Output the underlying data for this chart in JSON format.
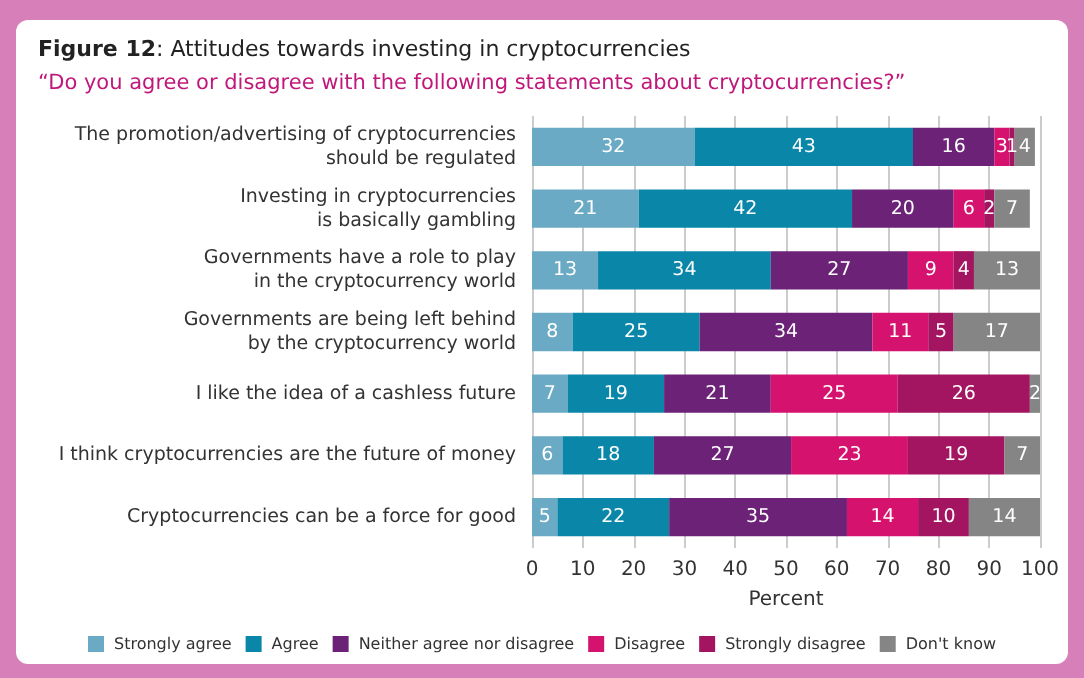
{
  "chart_data": {
    "type": "bar",
    "orientation": "horizontal",
    "stacked": true,
    "title": "Figure 12: Attitudes towards investing in cryptocurrencies",
    "subtitle": "“Do you agree or disagree with the following statements about cryptocurrencies?”",
    "xlabel": "Percent",
    "categories": [
      "The promotion/advertising of cryptocurrencies\nshould be regulated",
      "Investing in cryptocurrencies\nis basically gambling",
      "Governments have a role to play\nin the cryptocurrency world",
      "Governments are being left behind\nby the cryptocurrency world",
      "I like the idea of a cashless future",
      "I think cryptocurrencies are the future of money",
      "Cryptocurrencies can be a force for good"
    ],
    "series": [
      {
        "name": "Strongly agree",
        "color": "#6aaac4",
        "values": [
          32,
          21,
          13,
          8,
          7,
          6,
          5
        ]
      },
      {
        "name": "Agree",
        "color": "#0a87a8",
        "values": [
          43,
          42,
          34,
          25,
          19,
          18,
          22
        ]
      },
      {
        "name": "Neither agree nor disagree",
        "color": "#6b2277",
        "values": [
          16,
          20,
          27,
          34,
          21,
          27,
          35
        ]
      },
      {
        "name": "Disagree",
        "color": "#d5136f",
        "values": [
          3,
          6,
          9,
          11,
          25,
          23,
          14
        ]
      },
      {
        "name": "Strongly disagree",
        "color": "#a31560",
        "values": [
          1,
          2,
          4,
          5,
          26,
          19,
          10
        ]
      },
      {
        "name": "Don't know",
        "color": "#858585",
        "values": [
          4,
          7,
          13,
          17,
          2,
          7,
          14
        ]
      }
    ],
    "xlim": [
      0,
      100
    ],
    "xticks": [
      0,
      10,
      20,
      30,
      40,
      50,
      60,
      70,
      80,
      90,
      100
    ],
    "grid": "x",
    "legend": "bottom",
    "data_labels": true
  }
}
